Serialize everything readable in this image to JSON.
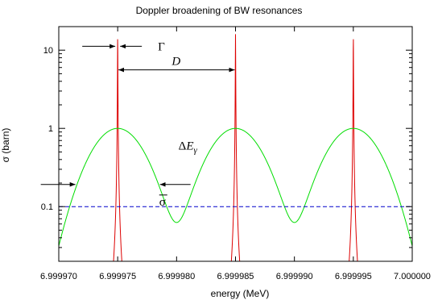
{
  "chart_data": {
    "type": "line",
    "title": "Doppler broadening of BW resonances",
    "xlabel": "energy (MeV)",
    "ylabel": "σ (barn)",
    "yscale": "log",
    "xlim": [
      6.99997,
      7.0
    ],
    "ylim": [
      0.02,
      20
    ],
    "x_ticks": [
      6.99997,
      6.999975,
      6.99998,
      6.999985,
      6.99999,
      6.999995,
      7.0
    ],
    "x_tick_labels": [
      "6.999970",
      "6.999975",
      "6.999980",
      "6.999985",
      "6.999990",
      "6.999995",
      "7.000000"
    ],
    "y_ticks": [
      0.1,
      1,
      10
    ],
    "y_tick_labels": [
      "0.1",
      "1",
      "10"
    ],
    "grid": false,
    "legend": "none",
    "series": [
      {
        "kind": "breit-wigner",
        "color": "#dd0000",
        "peak_value": 16,
        "centers": [
          6.999975,
          6.999985,
          6.999995
        ],
        "width": 2.5e-08
      },
      {
        "kind": "doppler-gaussian",
        "color": "#00dd00",
        "peak_value": 1,
        "centers": [
          6.999975,
          6.999985,
          6.999995
        ],
        "sigma": 1.9e-06
      },
      {
        "kind": "average",
        "color": "#0000cc",
        "style": "dashed",
        "value": 0.1
      }
    ],
    "annotations": [
      {
        "label": "Γ",
        "x": 6.9999775,
        "y": 11.2,
        "kind": "width"
      },
      {
        "label": "D",
        "x": 6.999979,
        "y": 5.6,
        "kind": "spacing"
      },
      {
        "label": "ΔE",
        "sub": "γ",
        "x": 6.999978,
        "y": 0.78,
        "kind": "doppler"
      },
      {
        "label": "σ",
        "x": 6.9999775,
        "y": 0.125,
        "kind": "average"
      }
    ]
  }
}
